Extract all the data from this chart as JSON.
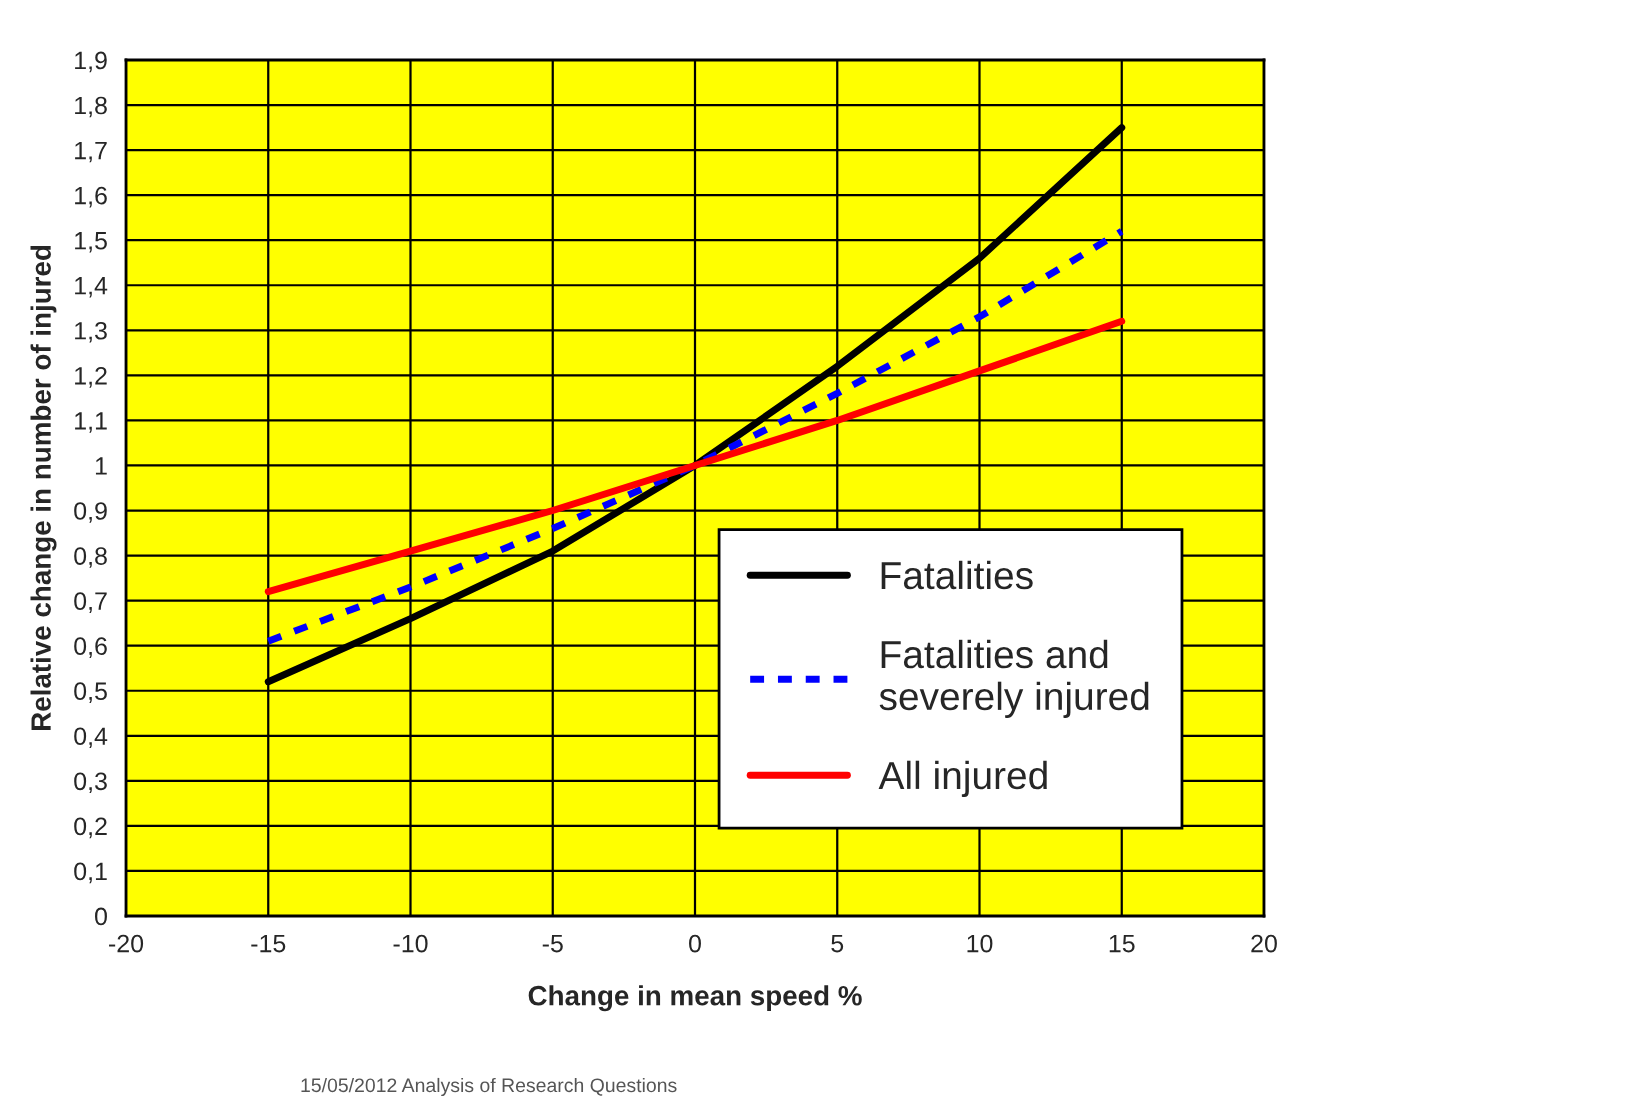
{
  "chart_data": {
    "type": "line",
    "xlabel": "Change in mean speed %",
    "ylabel": "Relative change in number of injured",
    "x": [
      -15,
      -10,
      -5,
      0,
      5,
      10,
      15
    ],
    "series": [
      {
        "name": "Fatalities",
        "color": "#000000",
        "line_style": "solid",
        "values": [
          0.52,
          0.66,
          0.81,
          1.0,
          1.22,
          1.46,
          1.75
        ]
      },
      {
        "name": "Fatalities and\nseverely injured",
        "color": "#0000ff",
        "line_style": "dotted",
        "values": [
          0.61,
          0.73,
          0.86,
          1.0,
          1.16,
          1.33,
          1.52
        ]
      },
      {
        "name": "All injured",
        "color": "#ff0000",
        "line_style": "solid",
        "values": [
          0.72,
          0.81,
          0.9,
          1.0,
          1.1,
          1.21,
          1.32
        ]
      }
    ],
    "xlim": [
      -20,
      20
    ],
    "xticks": [
      -20,
      -15,
      -10,
      -5,
      0,
      5,
      10,
      15,
      20
    ],
    "ylim": [
      0,
      1.9
    ],
    "yticks": [
      0,
      {
        "value": 0.1,
        "label": "0,1"
      },
      {
        "value": 0.2,
        "label": "0,2"
      },
      {
        "value": 0.3,
        "label": "0,3"
      },
      {
        "value": 0.4,
        "label": "0,4"
      },
      {
        "value": 0.5,
        "label": "0,5"
      },
      {
        "value": 0.6,
        "label": "0,6"
      },
      {
        "value": 0.7,
        "label": "0,7"
      },
      {
        "value": 0.8,
        "label": "0,8"
      },
      {
        "value": 0.9,
        "label": "0,9"
      },
      1,
      {
        "value": 1.1,
        "label": "1,1"
      },
      {
        "value": 1.2,
        "label": "1,2"
      },
      {
        "value": 1.3,
        "label": "1,3"
      },
      {
        "value": 1.4,
        "label": "1,4"
      },
      {
        "value": 1.5,
        "label": "1,5"
      },
      {
        "value": 1.6,
        "label": "1,6"
      },
      {
        "value": 1.7,
        "label": "1,7"
      },
      {
        "value": 1.8,
        "label": "1,8"
      },
      {
        "value": 1.9,
        "label": "1,9"
      }
    ],
    "grid": true,
    "legend": "bottom right",
    "marker": "none",
    "annotations": [
      "15/05/2012 Analysis of Research Questions"
    ]
  }
}
